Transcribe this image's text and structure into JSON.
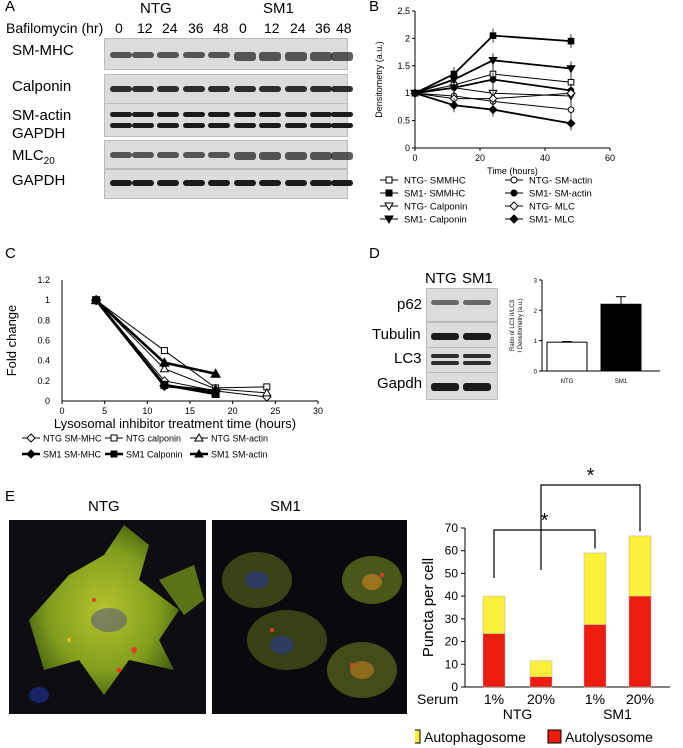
{
  "panels": {
    "A": {
      "label": "A",
      "treatment_label": "Bafilomycin (hr)",
      "group_labels": [
        "NTG",
        "SM1"
      ],
      "timepoints": [
        "0",
        "12",
        "24",
        "36",
        "48",
        "0",
        "12",
        "24",
        "36",
        "48"
      ],
      "blot_labels": [
        "SM-MHC",
        "Calponin",
        "SM-actin",
        "GAPDH",
        "MLC",
        "GAPDH"
      ],
      "mlc_subscript": "20"
    },
    "B": {
      "label": "B"
    },
    "C": {
      "label": "C"
    },
    "D": {
      "label": "D",
      "lane_labels": [
        "NTG",
        "SM1"
      ],
      "blot_labels": [
        "p62",
        "Tubulin",
        "LC3",
        "Gapdh"
      ]
    },
    "E": {
      "label": "E",
      "image_labels": [
        "NTG",
        "SM1"
      ],
      "significance": [
        "*",
        "*"
      ]
    }
  },
  "chart_data": [
    {
      "id": "B",
      "type": "line",
      "ylabel": "Densitometry (a.u.)",
      "xlabel": "Time (hours)",
      "xlim": [
        0,
        60
      ],
      "ylim": [
        0,
        2.5
      ],
      "xticks": [
        "0",
        "20",
        "40",
        "60"
      ],
      "yticks": [
        "0",
        "0.5",
        "1",
        "1.5",
        "2",
        "2.5"
      ],
      "x": [
        0,
        12,
        24,
        48
      ],
      "series": [
        {
          "name": "NTG- SMMHC",
          "marker": "open-square",
          "values": [
            1.0,
            1.15,
            1.35,
            1.2
          ]
        },
        {
          "name": "SM1- SMMHC",
          "marker": "filled-square",
          "values": [
            1.0,
            1.35,
            2.05,
            1.95
          ]
        },
        {
          "name": "NTG- Calponin",
          "marker": "open-triangle-down",
          "values": [
            1.0,
            1.1,
            1.0,
            0.95
          ]
        },
        {
          "name": "SM1- Calponin",
          "marker": "filled-triangle-down",
          "values": [
            1.0,
            1.25,
            1.6,
            1.45
          ]
        },
        {
          "name": "NTG- SM-actin",
          "marker": "open-circle",
          "values": [
            1.0,
            0.95,
            0.85,
            0.7
          ]
        },
        {
          "name": "SM1- SM-actin",
          "marker": "filled-circle",
          "values": [
            1.0,
            1.1,
            1.25,
            1.05
          ]
        },
        {
          "name": "NTG- MLC",
          "marker": "open-diamond",
          "values": [
            1.0,
            0.9,
            0.9,
            1.0
          ]
        },
        {
          "name": "SM1- MLC",
          "marker": "filled-diamond",
          "values": [
            1.0,
            0.78,
            0.7,
            0.45
          ]
        }
      ],
      "legend_placement": "below",
      "grid": false
    },
    {
      "id": "C",
      "type": "line",
      "ylabel": "Fold change",
      "xlabel": "Lysosomal inhibitor treatment time (hours)",
      "xlim": [
        0,
        30
      ],
      "ylim": [
        0,
        1.2
      ],
      "xticks": [
        "0",
        "5",
        "10",
        "15",
        "20",
        "25",
        "30"
      ],
      "yticks": [
        "0",
        "0.2",
        "0.4",
        "0.6",
        "0.8",
        "1",
        "1.2"
      ],
      "series": [
        {
          "name": "NTG SM-MHC",
          "marker": "open-diamond",
          "x": [
            4,
            12,
            18,
            24
          ],
          "values": [
            1.0,
            0.2,
            0.1,
            0.04
          ]
        },
        {
          "name": "NTG calponin",
          "marker": "open-square",
          "x": [
            4,
            12,
            18,
            24
          ],
          "values": [
            1.0,
            0.5,
            0.13,
            0.14
          ]
        },
        {
          "name": "NTG SM-actin",
          "marker": "open-triangle",
          "x": [
            4,
            12,
            18,
            24
          ],
          "values": [
            1.0,
            0.32,
            0.12,
            0.08
          ]
        },
        {
          "name": "SM1 SM-MHC",
          "marker": "filled-diamond",
          "x": [
            4,
            12,
            18
          ],
          "values": [
            1.0,
            0.15,
            0.1
          ]
        },
        {
          "name": "SM1 Calponin",
          "marker": "filled-square",
          "x": [
            4,
            12,
            18
          ],
          "values": [
            1.0,
            0.16,
            0.07
          ]
        },
        {
          "name": "SM1 SM-actin",
          "marker": "filled-triangle",
          "x": [
            4,
            12,
            18
          ],
          "values": [
            1.0,
            0.38,
            0.27
          ]
        }
      ],
      "legend_placement": "below",
      "grid": false
    },
    {
      "id": "D",
      "type": "bar",
      "ylabel": "Ratio of LC3 II/LC3 I Densitometry (a.u.)",
      "categories": [
        "NTG",
        "SM1"
      ],
      "values": [
        0.95,
        2.2
      ],
      "errors": [
        0.02,
        0.25
      ],
      "ylim": [
        0,
        3
      ],
      "yticks": [
        "0",
        "1",
        "2",
        "3"
      ],
      "colors": [
        "#ffffff",
        "#000000"
      ]
    },
    {
      "id": "E",
      "type": "bar",
      "stacked": true,
      "ylabel": "Puncta per cell",
      "xlabel_prefix": "Serum",
      "categories": [
        "1%",
        "20%",
        "1%",
        "20%"
      ],
      "groups": [
        "NTG",
        "SM1"
      ],
      "ylim": [
        0,
        70
      ],
      "yticks": [
        "0",
        "10",
        "20",
        "30",
        "40",
        "50",
        "60",
        "70"
      ],
      "series": [
        {
          "name": "Autolysosome",
          "color": "#ee1c0f",
          "values": [
            23.5,
            4.5,
            27.5,
            40
          ]
        },
        {
          "name": "Autophagosome",
          "color": "#fdf03a",
          "values": [
            16.5,
            7,
            31.5,
            26.5
          ]
        }
      ],
      "legend_placement": "bottom"
    }
  ]
}
